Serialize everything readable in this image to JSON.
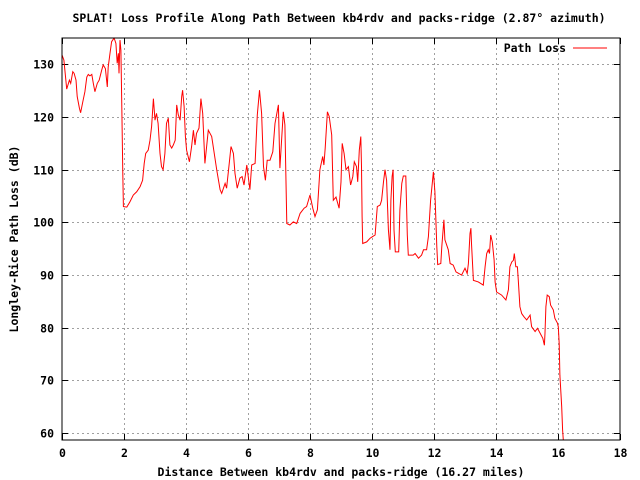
{
  "chart_data": {
    "type": "line",
    "title": "SPLAT! Loss Profile Along Path Between kb4rdv and packs-ridge (2.87° azimuth)",
    "xlabel": "Distance Between kb4rdv and packs-ridge (16.27 miles)",
    "ylabel": "Longley-Rice Path Loss (dB)",
    "xlim": [
      0,
      18
    ],
    "ylim": [
      58.7,
      135
    ],
    "xticks": [
      0,
      2,
      4,
      6,
      8,
      10,
      12,
      14,
      16,
      18
    ],
    "xtick_labels": [
      "0",
      "2",
      "4",
      "6",
      "8",
      "10",
      "12",
      "14",
      "16",
      "18"
    ],
    "yticks": [
      60,
      70,
      80,
      90,
      100,
      110,
      120,
      130
    ],
    "ytick_labels": [
      "60",
      "70",
      "80",
      "90",
      "100",
      "110",
      "120",
      "130"
    ],
    "grid": true,
    "legend": {
      "placement": "top-right",
      "entries": [
        "Path Loss"
      ]
    },
    "series": [
      {
        "name": "Path Loss",
        "color": "#ff0000",
        "points": [
          [
            0,
            131.8
          ],
          [
            0.06,
            130.8
          ],
          [
            0.13,
            126.7
          ],
          [
            0.15,
            125.3
          ],
          [
            0.24,
            127
          ],
          [
            0.28,
            126.4
          ],
          [
            0.35,
            128.6
          ],
          [
            0.39,
            128.3
          ],
          [
            0.45,
            127
          ],
          [
            0.49,
            123.9
          ],
          [
            0.56,
            121.7
          ],
          [
            0.6,
            120.8
          ],
          [
            0.67,
            122.9
          ],
          [
            0.74,
            124.8
          ],
          [
            0.8,
            127.6
          ],
          [
            0.85,
            128.1
          ],
          [
            0.9,
            127.8
          ],
          [
            0.96,
            128.1
          ],
          [
            1.01,
            126.4
          ],
          [
            1.06,
            124.8
          ],
          [
            1.14,
            126.4
          ],
          [
            1.2,
            127
          ],
          [
            1.28,
            128.9
          ],
          [
            1.33,
            129.9
          ],
          [
            1.4,
            129.2
          ],
          [
            1.44,
            127
          ],
          [
            1.46,
            125.7
          ],
          [
            1.49,
            129.5
          ],
          [
            1.55,
            132.1
          ],
          [
            1.6,
            134.3
          ],
          [
            1.68,
            135
          ],
          [
            1.74,
            134
          ],
          [
            1.78,
            130.2
          ],
          [
            1.82,
            132.1
          ],
          [
            1.84,
            128.3
          ],
          [
            1.87,
            134.6
          ],
          [
            1.9,
            132.7
          ],
          [
            1.93,
            122
          ],
          [
            1.96,
            109.3
          ],
          [
            1.98,
            103
          ],
          [
            2.09,
            102.9
          ],
          [
            2.19,
            103.9
          ],
          [
            2.3,
            105.2
          ],
          [
            2.41,
            105.8
          ],
          [
            2.52,
            106.8
          ],
          [
            2.6,
            108
          ],
          [
            2.65,
            111.2
          ],
          [
            2.7,
            113.1
          ],
          [
            2.78,
            113.7
          ],
          [
            2.84,
            115.6
          ],
          [
            2.89,
            118.2
          ],
          [
            2.95,
            123.5
          ],
          [
            3,
            119.4
          ],
          [
            3.05,
            120.7
          ],
          [
            3.1,
            118.8
          ],
          [
            3.16,
            113.1
          ],
          [
            3.21,
            110.6
          ],
          [
            3.26,
            110
          ],
          [
            3.32,
            113.1
          ],
          [
            3.37,
            118.8
          ],
          [
            3.43,
            119.8
          ],
          [
            3.48,
            114.7
          ],
          [
            3.54,
            114.1
          ],
          [
            3.59,
            114.7
          ],
          [
            3.65,
            115.6
          ],
          [
            3.7,
            122.3
          ],
          [
            3.75,
            120.4
          ],
          [
            3.81,
            119.4
          ],
          [
            3.86,
            123.9
          ],
          [
            3.89,
            125.1
          ],
          [
            3.94,
            122
          ],
          [
            3.98,
            116.3
          ],
          [
            4.02,
            113.7
          ],
          [
            4.11,
            111.5
          ],
          [
            4.18,
            114.4
          ],
          [
            4.24,
            117.5
          ],
          [
            4.29,
            114.7
          ],
          [
            4.34,
            116.9
          ],
          [
            4.42,
            117.9
          ],
          [
            4.48,
            123.5
          ],
          [
            4.54,
            120.7
          ],
          [
            4.61,
            111.2
          ],
          [
            4.72,
            117.5
          ],
          [
            4.83,
            116.3
          ],
          [
            4.99,
            110
          ],
          [
            5.1,
            106.2
          ],
          [
            5.15,
            105.5
          ],
          [
            5.26,
            107.4
          ],
          [
            5.31,
            106.5
          ],
          [
            5.4,
            111.5
          ],
          [
            5.45,
            114.4
          ],
          [
            5.53,
            113.1
          ],
          [
            5.58,
            109.3
          ],
          [
            5.65,
            106.5
          ],
          [
            5.74,
            108.4
          ],
          [
            5.81,
            108.7
          ],
          [
            5.87,
            107.1
          ],
          [
            5.96,
            110.9
          ],
          [
            6.06,
            106.2
          ],
          [
            6.12,
            110.9
          ],
          [
            6.23,
            111.2
          ],
          [
            6.3,
            120.4
          ],
          [
            6.37,
            125.1
          ],
          [
            6.44,
            120.7
          ],
          [
            6.5,
            110.6
          ],
          [
            6.56,
            108
          ],
          [
            6.62,
            111.8
          ],
          [
            6.71,
            111.8
          ],
          [
            6.8,
            113.4
          ],
          [
            6.87,
            118.8
          ],
          [
            6.98,
            122.3
          ],
          [
            7.03,
            110.3
          ],
          [
            7.14,
            121
          ],
          [
            7.19,
            118.5
          ],
          [
            7.25,
            99.8
          ],
          [
            7.35,
            99.5
          ],
          [
            7.46,
            100.1
          ],
          [
            7.57,
            99.8
          ],
          [
            7.68,
            101.7
          ],
          [
            7.81,
            102.7
          ],
          [
            7.89,
            103
          ],
          [
            8,
            105.2
          ],
          [
            8.09,
            102.7
          ],
          [
            8.16,
            101.1
          ],
          [
            8.24,
            102.4
          ],
          [
            8.32,
            110
          ],
          [
            8.41,
            112.5
          ],
          [
            8.45,
            110.9
          ],
          [
            8.49,
            114.1
          ],
          [
            8.56,
            121
          ],
          [
            8.62,
            120.1
          ],
          [
            8.7,
            116.6
          ],
          [
            8.75,
            104.2
          ],
          [
            8.84,
            104.8
          ],
          [
            8.94,
            102.7
          ],
          [
            9,
            107.7
          ],
          [
            9.04,
            115
          ],
          [
            9.1,
            113.1
          ],
          [
            9.16,
            110
          ],
          [
            9.24,
            110.6
          ],
          [
            9.31,
            107.1
          ],
          [
            9.38,
            108.7
          ],
          [
            9.43,
            111.5
          ],
          [
            9.5,
            110.6
          ],
          [
            9.54,
            107.7
          ],
          [
            9.59,
            113.7
          ],
          [
            9.64,
            116.3
          ],
          [
            9.66,
            110.6
          ],
          [
            9.68,
            101.1
          ],
          [
            9.7,
            96
          ],
          [
            9.83,
            96.3
          ],
          [
            9.94,
            97
          ],
          [
            10.02,
            97.3
          ],
          [
            10.1,
            97.6
          ],
          [
            10.17,
            103
          ],
          [
            10.26,
            103.3
          ],
          [
            10.31,
            104.2
          ],
          [
            10.37,
            107.7
          ],
          [
            10.42,
            110
          ],
          [
            10.47,
            108
          ],
          [
            10.53,
            98.6
          ],
          [
            10.58,
            94.8
          ],
          [
            10.61,
            104.2
          ],
          [
            10.65,
            108.7
          ],
          [
            10.68,
            110
          ],
          [
            10.71,
            98.6
          ],
          [
            10.75,
            94.4
          ],
          [
            10.86,
            94.4
          ],
          [
            10.9,
            102.4
          ],
          [
            10.96,
            107.4
          ],
          [
            11.01,
            108.8
          ],
          [
            11.09,
            108.8
          ],
          [
            11.14,
            97.6
          ],
          [
            11.17,
            93.8
          ],
          [
            11.33,
            93.8
          ],
          [
            11.39,
            94.1
          ],
          [
            11.5,
            93.2
          ],
          [
            11.6,
            93.8
          ],
          [
            11.66,
            94.8
          ],
          [
            11.76,
            94.8
          ],
          [
            11.82,
            97.3
          ],
          [
            11.89,
            104.2
          ],
          [
            11.98,
            109.6
          ],
          [
            12.03,
            105.8
          ],
          [
            12.09,
            95.4
          ],
          [
            12.12,
            92
          ],
          [
            12.22,
            92.2
          ],
          [
            12.25,
            95.4
          ],
          [
            12.32,
            100.5
          ],
          [
            12.35,
            96.7
          ],
          [
            12.46,
            94.8
          ],
          [
            12.52,
            92.2
          ],
          [
            12.62,
            91.9
          ],
          [
            12.71,
            90.6
          ],
          [
            12.89,
            90
          ],
          [
            13,
            91.3
          ],
          [
            13.07,
            90.3
          ],
          [
            13.11,
            92.2
          ],
          [
            13.16,
            97.9
          ],
          [
            13.19,
            98.9
          ],
          [
            13.21,
            96
          ],
          [
            13.27,
            89
          ],
          [
            13.43,
            88.7
          ],
          [
            13.59,
            88.1
          ],
          [
            13.65,
            91.6
          ],
          [
            13.7,
            94.1
          ],
          [
            13.75,
            94.8
          ],
          [
            13.79,
            94.1
          ],
          [
            13.83,
            97.6
          ],
          [
            13.88,
            96.3
          ],
          [
            13.94,
            92.9
          ],
          [
            13.97,
            88.7
          ],
          [
            14.02,
            86.8
          ],
          [
            14.18,
            86.2
          ],
          [
            14.32,
            85.3
          ],
          [
            14.4,
            87.2
          ],
          [
            14.45,
            91.6
          ],
          [
            14.51,
            92.5
          ],
          [
            14.56,
            92.8
          ],
          [
            14.59,
            94.1
          ],
          [
            14.64,
            91.6
          ],
          [
            14.69,
            91.6
          ],
          [
            14.72,
            89
          ],
          [
            14.77,
            84
          ],
          [
            14.83,
            82.7
          ],
          [
            14.9,
            82.1
          ],
          [
            14.99,
            81.5
          ],
          [
            15.1,
            82.4
          ],
          [
            15.15,
            80.2
          ],
          [
            15.26,
            79.3
          ],
          [
            15.34,
            79.9
          ],
          [
            15.42,
            79
          ],
          [
            15.51,
            78
          ],
          [
            15.56,
            76.7
          ],
          [
            15.58,
            79
          ],
          [
            15.61,
            84
          ],
          [
            15.65,
            86.2
          ],
          [
            15.72,
            85.9
          ],
          [
            15.76,
            84.3
          ],
          [
            15.85,
            83.4
          ],
          [
            15.9,
            81.8
          ],
          [
            15.98,
            80.9
          ],
          [
            16.01,
            80.2
          ],
          [
            16.04,
            77
          ],
          [
            16.06,
            71
          ],
          [
            16.12,
            65
          ],
          [
            16.15,
            60.6
          ],
          [
            16.17,
            58.7
          ],
          [
            16.27,
            55
          ]
        ]
      }
    ]
  }
}
